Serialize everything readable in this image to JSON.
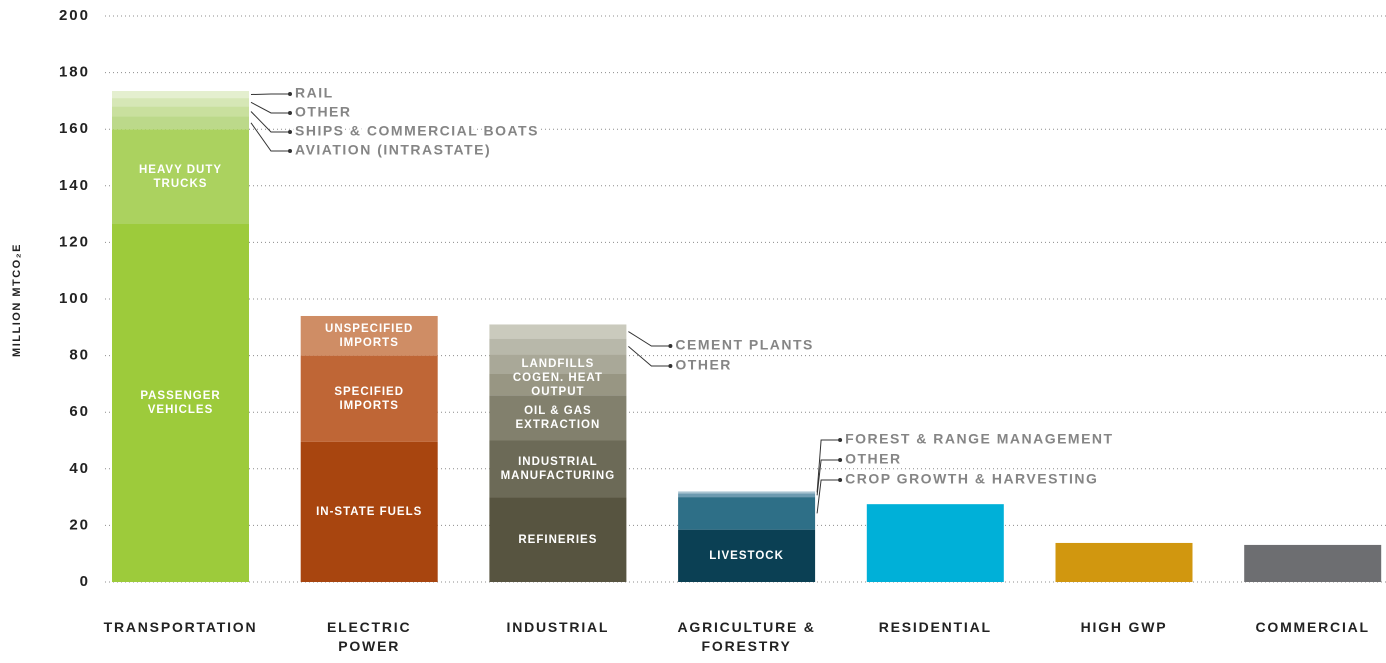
{
  "chart_data": {
    "type": "stacked_bar",
    "y_label": "MILLION MTCO₂E",
    "ylim": [
      0,
      200
    ],
    "yticks": [
      0,
      20,
      40,
      60,
      80,
      100,
      120,
      140,
      160,
      180,
      200
    ],
    "grid": true,
    "categories": [
      "TRANSPORTATION",
      "ELECTRIC\nPOWER",
      "INDUSTRIAL",
      "AGRICULTURE &\nFORESTRY",
      "RESIDENTIAL",
      "HIGH GWP",
      "COMMERCIAL"
    ],
    "stacks": [
      [
        {
          "name": "PASSENGER\nVEHICLES",
          "value": 126.5,
          "color": "#9dcb3b"
        },
        {
          "name": "HEAVY DUTY\nTRUCKS",
          "value": 33.5,
          "color": "#abd25f"
        },
        {
          "name": "AVIATION (INTRASTATE)",
          "value": 4.5,
          "color": "#bcd98a",
          "callout": true
        },
        {
          "name": "SHIPS & COMMERCIAL BOATS",
          "value": 3.5,
          "color": "#c9e09e",
          "callout": true
        },
        {
          "name": "OTHER",
          "value": 3,
          "color": "#d6e7b6",
          "callout": true
        },
        {
          "name": "RAIL",
          "value": 2.5,
          "color": "#e4efcf",
          "callout": true
        }
      ],
      [
        {
          "name": "IN-STATE FUELS",
          "value": 49.5,
          "color": "#a8450f"
        },
        {
          "name": "SPECIFIED\nIMPORTS",
          "value": 30.5,
          "color": "#bf6636"
        },
        {
          "name": "UNSPECIFIED\nIMPORTS",
          "value": 14,
          "color": "#cf8d65"
        }
      ],
      [
        {
          "name": "REFINERIES",
          "value": 30,
          "color": "#575440"
        },
        {
          "name": "INDUSTRIAL\nMANUFACTURING",
          "value": 20,
          "color": "#6c6a57"
        },
        {
          "name": "OIL & GAS\nEXTRACTION",
          "value": 16,
          "color": "#82806d"
        },
        {
          "name": "COGEN. HEAT OUTPUT",
          "value": 7.5,
          "color": "#989683"
        },
        {
          "name": "LANDFILLS",
          "value": 7,
          "color": "#a9a898"
        },
        {
          "name": "OTHER",
          "value": 5.5,
          "color": "#b8b8aa",
          "callout": true
        },
        {
          "name": "CEMENT PLANTS",
          "value": 5,
          "color": "#cacabd",
          "callout": true
        }
      ],
      [
        {
          "name": "LIVESTOCK",
          "value": 18.5,
          "color": "#0b4054"
        },
        {
          "name": "CROP GROWTH & HARVESTING",
          "value": 11.5,
          "color": "#2e6f87",
          "callout": true
        },
        {
          "name": "OTHER",
          "value": 1.3,
          "color": "#6d9ab0",
          "callout": true
        },
        {
          "name": "FOREST & RANGE MANAGEMENT",
          "value": 0.7,
          "color": "#a9c4d1",
          "callout": true
        }
      ],
      [
        {
          "value": 27.5,
          "color": "#00b0d8"
        }
      ],
      [
        {
          "value": 13.8,
          "color": "#d1970f"
        }
      ],
      [
        {
          "value": 13.1,
          "color": "#6d6e71"
        }
      ]
    ]
  }
}
